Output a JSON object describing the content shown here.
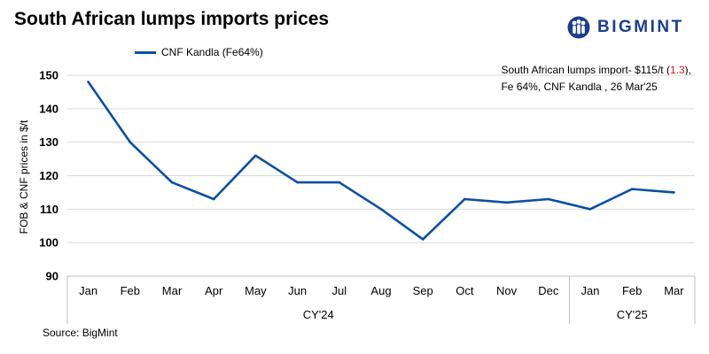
{
  "header": {
    "title": "South African lumps imports prices",
    "logo_text": "BIGMINT"
  },
  "legend": {
    "label": "CNF Kandla (Fe64%)"
  },
  "annotation": {
    "line1_prefix": "South African lumps import- $115/t (",
    "line1_change": "1.3",
    "line1_suffix": "),",
    "line2": "Fe 64%, CNF Kandla , 26 Mar'25"
  },
  "source": "Source: BigMint",
  "colors": {
    "line": "#0b4fa3",
    "grid": "#d9d9d9",
    "change_negative": "#d01c1c",
    "logo": "#1a3f8f"
  },
  "chart_data": {
    "type": "line",
    "categories": [
      "Jan",
      "Feb",
      "Mar",
      "Apr",
      "May",
      "Jun",
      "Jul",
      "Aug",
      "Sep",
      "Oct",
      "Nov",
      "Dec",
      "Jan",
      "Feb",
      "Mar"
    ],
    "groups": [
      {
        "label": "CY'24",
        "count": 12
      },
      {
        "label": "CY'25",
        "count": 3
      }
    ],
    "series": [
      {
        "name": "CNF Kandla (Fe64%)",
        "values": [
          148,
          130,
          118,
          113,
          126,
          118,
          118,
          110,
          101,
          113,
          112,
          113,
          110,
          116,
          115
        ]
      }
    ],
    "ylabel": "FOB & CNF prices in $/t",
    "ylim": [
      90,
      150
    ],
    "yticks": [
      90,
      100,
      110,
      120,
      130,
      140,
      150
    ],
    "grid": true,
    "legend_position": "top-left"
  }
}
